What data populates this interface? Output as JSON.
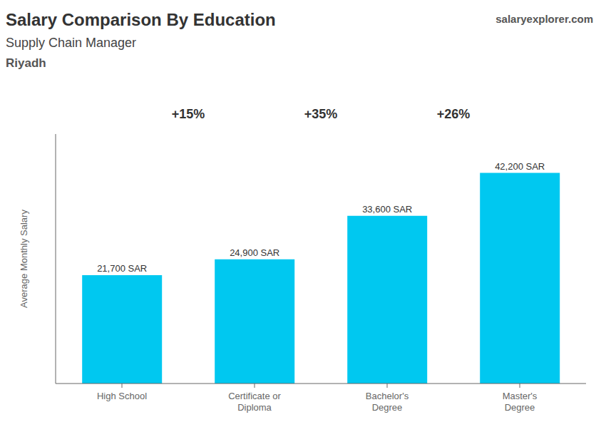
{
  "chart_data": {
    "type": "bar",
    "title": "Salary Comparison By Education",
    "subtitle": "Supply Chain Manager",
    "y_label": "Average Monthly Salary",
    "annotations": [
      "Riyadh",
      "salaryexplorer.com",
      "+15%",
      "+35%",
      "+26%"
    ],
    "categories": [
      "High School",
      "Certificate or\nDiploma",
      "Bachelor's\nDegree",
      "Master's\nDegree"
    ],
    "values": [
      21700,
      24900,
      33600,
      42200
    ],
    "value_labels": [
      "21,700 SAR",
      "24,900 SAR",
      "33,600 SAR",
      "42,200 SAR"
    ],
    "color": "#00c8f0",
    "ylim": [
      0,
      50000
    ],
    "grid": false,
    "data_labels": true,
    "tick_labels": "x"
  }
}
